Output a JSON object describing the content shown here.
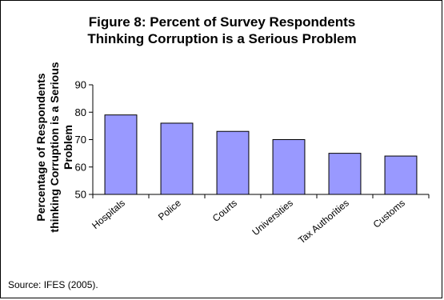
{
  "chart_data": {
    "type": "bar",
    "title_lines": [
      "Figure 8: Percent of Survey Respondents",
      "Thinking Corruption is a Serious Problem"
    ],
    "ylabel_lines": [
      "Percentage of Respondents",
      "thinking Corruption is a Serious",
      "Problem"
    ],
    "xlabel": "",
    "categories": [
      "Hospitals",
      "Police",
      "Courts",
      "Universities",
      "Tax Authorities",
      "Customs"
    ],
    "values": [
      79,
      76,
      73,
      70,
      65,
      64
    ],
    "ylim": [
      50,
      90
    ],
    "yticks": [
      50,
      60,
      70,
      80,
      90
    ],
    "grid": false,
    "legend": "none",
    "bar_color": "#9999ff",
    "source": "Source: IFES (2005)."
  }
}
